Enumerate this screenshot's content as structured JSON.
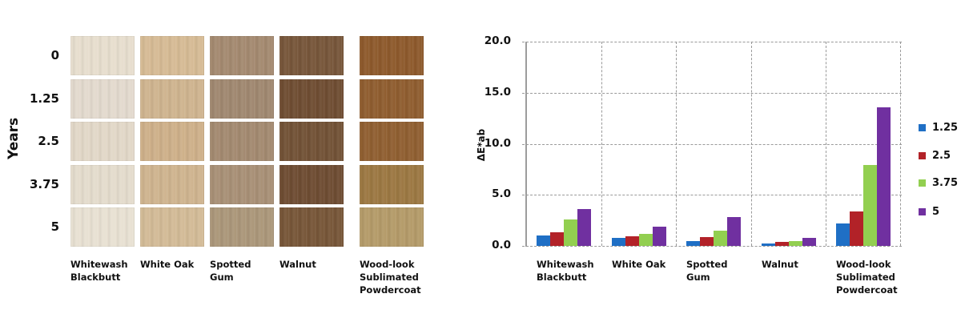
{
  "left_panel": {
    "axis_label": "Years",
    "rows": [
      "0",
      "1.25",
      "2.5",
      "3.75",
      "5"
    ],
    "columns": [
      {
        "label": "Whitewash\nBlackbutt",
        "colors": [
          "#e7dece",
          "#e3dace",
          "#e2d8c8",
          "#e4dccd",
          "#e8e1d3"
        ]
      },
      {
        "label": "White Oak",
        "colors": [
          "#d6bb95",
          "#cfb48f",
          "#ceb08a",
          "#cfb48f",
          "#d3bb97"
        ]
      },
      {
        "label": "Spotted\nGum",
        "colors": [
          "#a48a70",
          "#a08870",
          "#a38a70",
          "#a89076",
          "#ab977a"
        ]
      },
      {
        "label": "Walnut",
        "colors": [
          "#77563a",
          "#6f4d32",
          "#725236",
          "#6e4c32",
          "#775638"
        ]
      },
      {
        "label": "Wood-look\nSublimated\nPowdercoat",
        "colors": [
          "#8e5a2c",
          "#8f5d2f",
          "#905f31",
          "#9c7842",
          "#b49b69"
        ]
      }
    ]
  },
  "chart_data": {
    "type": "bar",
    "title": "",
    "xlabel": "",
    "ylabel": "ΔE*ab",
    "ylim": [
      0,
      20
    ],
    "yticks": [
      "0.0",
      "5.0",
      "10.0",
      "15.0",
      "20.0"
    ],
    "grid": true,
    "legend_position": "right",
    "categories": [
      "Whitewash\nBlackbutt",
      "White Oak",
      "Spotted\nGum",
      "Walnut",
      "Wood-look\nSublimated\nPowdercoat"
    ],
    "series": [
      {
        "name": "1.25",
        "color": "#1f6fc5",
        "values": [
          1.0,
          0.8,
          0.5,
          0.25,
          2.2
        ]
      },
      {
        "name": "2.5",
        "color": "#b22228",
        "values": [
          1.3,
          0.95,
          0.85,
          0.4,
          3.4
        ]
      },
      {
        "name": "3.75",
        "color": "#92cf50",
        "values": [
          2.6,
          1.2,
          1.5,
          0.5,
          7.9
        ]
      },
      {
        "name": "5",
        "color": "#7030a0",
        "values": [
          3.6,
          1.9,
          2.8,
          0.8,
          13.6
        ]
      }
    ]
  }
}
